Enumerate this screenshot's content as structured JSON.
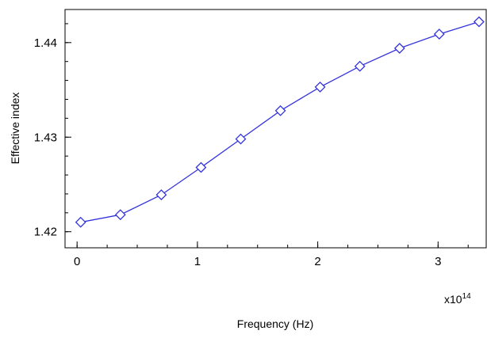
{
  "chart_data": {
    "type": "line",
    "title": "",
    "xlabel": "Frequency (Hz)",
    "ylabel": "Effective index",
    "x_multiplier_label": "x10",
    "x_multiplier_exponent": "14",
    "xlim": [
      -0.1,
      3.4
    ],
    "ylim": [
      1.4183,
      1.4435
    ],
    "x_ticks": [
      0,
      1,
      2,
      3
    ],
    "x_tick_labels": [
      "0",
      "1",
      "2",
      "3"
    ],
    "y_ticks": [
      1.42,
      1.43,
      1.44
    ],
    "y_tick_labels": [
      "1.42",
      "1.43",
      "1.44"
    ],
    "x_minor_step": 0.25,
    "y_minor_step": 0.002,
    "grid": false,
    "series": [
      {
        "x": [
          0.03,
          0.36,
          0.7,
          1.03,
          1.36,
          1.69,
          2.02,
          2.35,
          2.68,
          3.01,
          3.34
        ],
        "values": [
          1.421,
          1.4218,
          1.4239,
          1.4268,
          1.4298,
          1.4328,
          1.4353,
          1.4375,
          1.4394,
          1.4409,
          1.4422
        ],
        "color": "#3333dd",
        "marker": "diamond"
      }
    ]
  }
}
